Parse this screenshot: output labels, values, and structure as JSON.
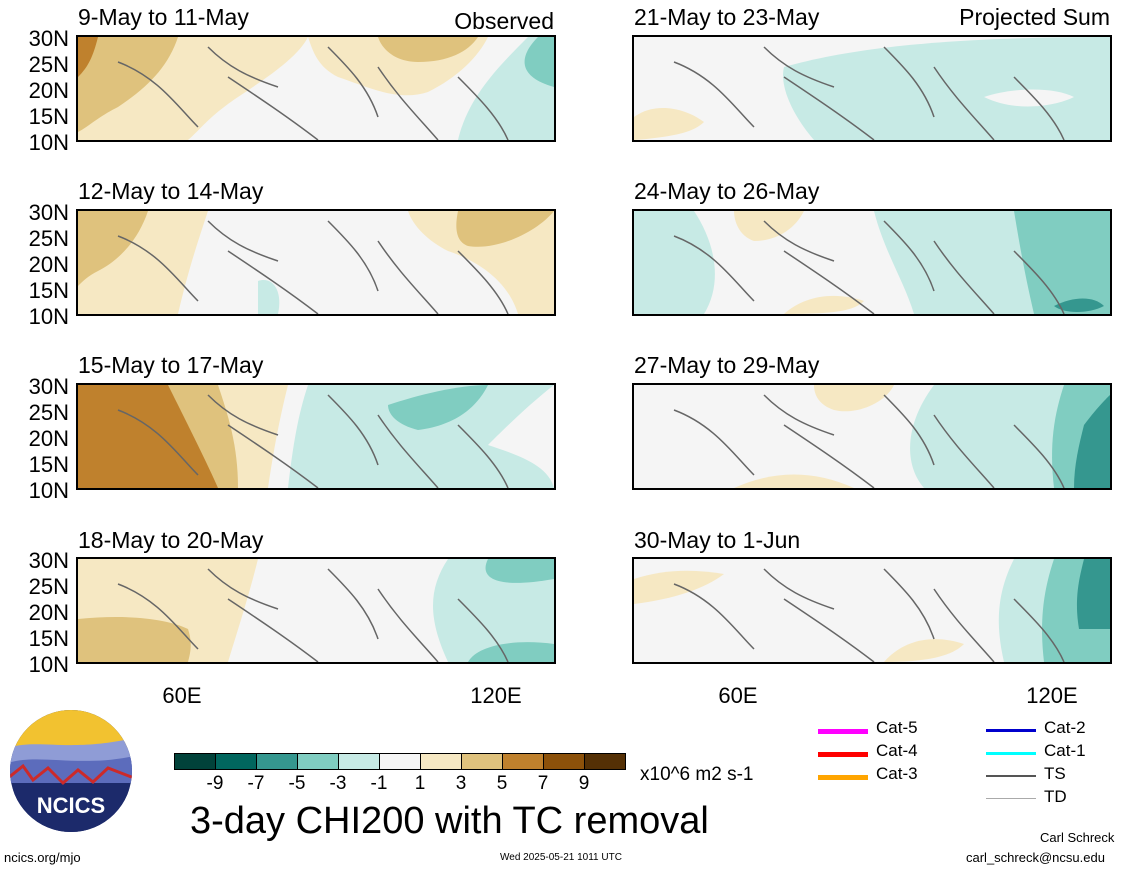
{
  "header": {
    "observed_label": "Observed",
    "projected_label": "Projected Sum"
  },
  "latitude_labels": [
    "30N",
    "25N",
    "20N",
    "15N",
    "10N"
  ],
  "longitude_labels": [
    "60E",
    "120E"
  ],
  "panels_left": [
    {
      "title": "9-May to 11-May"
    },
    {
      "title": "12-May to 14-May"
    },
    {
      "title": "15-May to 17-May"
    },
    {
      "title": "18-May to 20-May"
    }
  ],
  "panels_right": [
    {
      "title": "21-May to 23-May"
    },
    {
      "title": "24-May to 26-May"
    },
    {
      "title": "27-May to 29-May"
    },
    {
      "title": "30-May to 1-Jun"
    }
  ],
  "colorbar": {
    "colors": [
      "#01423a",
      "#01665e",
      "#35978f",
      "#80cdc1",
      "#c7eae5",
      "#f5f5f5",
      "#f6e8c3",
      "#dfc27d",
      "#bf812d",
      "#8c510a",
      "#543005"
    ],
    "tick_labels": [
      "-9",
      "-7",
      "-5",
      "-3",
      "-1",
      "1",
      "3",
      "5",
      "7",
      "9"
    ],
    "units": "x10^6 m2 s-1"
  },
  "main_title": "3-day CHI200 with TC removal",
  "legend": {
    "items": [
      {
        "label": "Cat-5",
        "color": "#ff00ff"
      },
      {
        "label": "Cat-4",
        "color": "#ff0000"
      },
      {
        "label": "Cat-3",
        "color": "#ffa500"
      },
      {
        "label": "Cat-2",
        "color": "#0000cd"
      },
      {
        "label": "Cat-1",
        "color": "#00ffff"
      },
      {
        "label": "TS",
        "color": "#555555"
      },
      {
        "label": "TD",
        "color": "#aaaaaa"
      }
    ]
  },
  "logo": {
    "text": "NCICS"
  },
  "footer": {
    "left": "ncics.org/mjo",
    "center": "Wed 2025-05-21 1011 UTC",
    "author": "Carl Schreck",
    "email": "carl_schreck@ncsu.edu"
  }
}
